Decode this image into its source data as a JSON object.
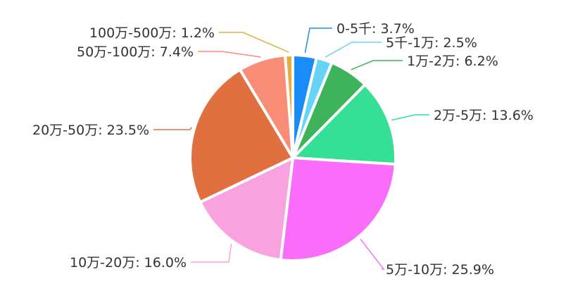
{
  "chart_data": {
    "type": "pie",
    "start": "12 o'clock, clockwise",
    "slices": [
      {
        "label": "0-5千",
        "value": 3.7,
        "text": "0-5千: 3.7%",
        "color": "#1a8cf5"
      },
      {
        "label": "5千-1万",
        "value": 2.5,
        "text": "5千-1万: 2.5%",
        "color": "#66d4f7"
      },
      {
        "label": "1万-2万",
        "value": 6.2,
        "text": "1万-2万: 6.2%",
        "color": "#3db35c"
      },
      {
        "label": "2万-5万",
        "value": 13.6,
        "text": "2万-5万: 13.6%",
        "color": "#35df95"
      },
      {
        "label": "5万-10万",
        "value": 25.9,
        "text": "5万-10万: 25.9%",
        "color": "#fa6cfa"
      },
      {
        "label": "10万-20万",
        "value": 16.0,
        "text": "10万-20万: 16.0%",
        "color": "#f9a2e0"
      },
      {
        "label": "20万-50万",
        "value": 23.5,
        "text": "20万-50万: 23.5%",
        "color": "#e07040"
      },
      {
        "label": "50万-100万",
        "value": 7.4,
        "text": "50万-100万: 7.4%",
        "color": "#f98d78"
      },
      {
        "label": "100万-500万",
        "value": 1.2,
        "text": "100万-500万: 1.2%",
        "color": "#e0b040"
      }
    ]
  }
}
